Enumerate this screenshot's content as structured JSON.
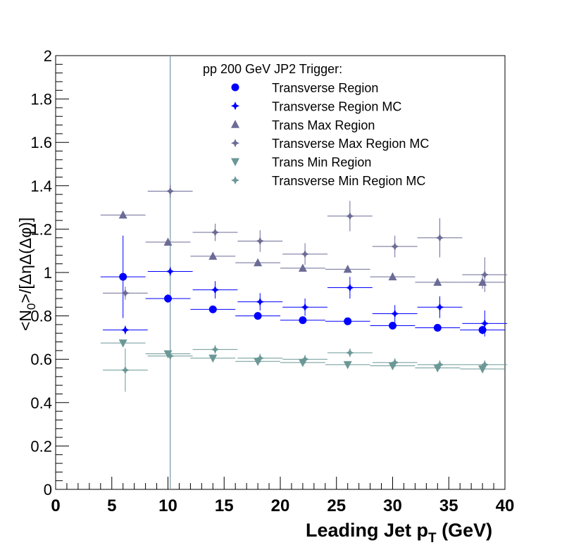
{
  "colors": {
    "blue": "#0000ff",
    "slate": "#6b6b96",
    "teal": "#6b9896",
    "vline": "#7f9fae",
    "axis": "#000000"
  },
  "chart_data": {
    "type": "scatter",
    "xlabel_main": "Leading Jet p",
    "xlabel_sub": "T",
    "xlabel_unit": " (GeV)",
    "ylabel": "<N",
    "ylabel_sub": "0",
    "ylabel_rest": ">/[ΔηΔ(Δφ)]",
    "xlim": [
      0,
      40
    ],
    "ylim": [
      0,
      2
    ],
    "x_ticks": [
      0,
      5,
      10,
      15,
      20,
      25,
      30,
      35,
      40
    ],
    "y_ticks": [
      0,
      0.2,
      0.4,
      0.6,
      0.8,
      1,
      1.2,
      1.4,
      1.6,
      1.8,
      2
    ],
    "x_tick_labels": [
      "0",
      "5",
      "10",
      "15",
      "20",
      "25",
      "30",
      "35",
      "40"
    ],
    "y_tick_labels": [
      "0",
      "0.2",
      "0.4",
      "0.6",
      "0.8",
      "1",
      "1.2",
      "1.4",
      "1.6",
      "1.8",
      "2"
    ],
    "grid": false,
    "vertical_line_x": 10.2,
    "legend_header": "pp 200 GeV JP2 Trigger:",
    "legend_position": "top-center",
    "series": [
      {
        "name": "Transverse Region",
        "marker": "circle",
        "color": "#0000ff",
        "x": [
          6,
          10,
          14,
          18,
          22,
          26,
          30,
          34,
          38
        ],
        "xerr": [
          2,
          2,
          2,
          2,
          2,
          2,
          2,
          2,
          2
        ],
        "y": [
          0.98,
          0.88,
          0.83,
          0.8,
          0.78,
          0.775,
          0.755,
          0.745,
          0.735
        ],
        "yerr": [
          0.19,
          0.02,
          0.01,
          0.01,
          0.01,
          0.01,
          0.01,
          0.01,
          0.02
        ]
      },
      {
        "name": "Transverse Region MC",
        "marker": "star",
        "color": "#0000ff",
        "x": [
          6.2,
          10.2,
          14.2,
          18.2,
          22.2,
          26.2,
          30.2,
          34.2,
          38.2
        ],
        "xerr": [
          2,
          2,
          2,
          2,
          2,
          2,
          2,
          2,
          2
        ],
        "y": [
          0.735,
          1.005,
          0.92,
          0.865,
          0.84,
          0.93,
          0.81,
          0.84,
          0.765
        ],
        "yerr": [
          0.02,
          0.02,
          0.04,
          0.04,
          0.04,
          0.05,
          0.04,
          0.05,
          0.06
        ]
      },
      {
        "name": "Trans Max Region",
        "marker": "triangle-up",
        "color": "#6b6b96",
        "x": [
          6,
          10,
          14,
          18,
          22,
          26,
          30,
          34,
          38
        ],
        "xerr": [
          2,
          2,
          2,
          2,
          2,
          2,
          2,
          2,
          2
        ],
        "y": [
          1.265,
          1.14,
          1.075,
          1.045,
          1.02,
          1.015,
          0.98,
          0.955,
          0.955
        ],
        "yerr": [
          0.01,
          0.01,
          0.01,
          0.01,
          0.01,
          0.01,
          0.01,
          0.01,
          0.03
        ]
      },
      {
        "name": "Transverse Max Region MC",
        "marker": "star",
        "color": "#6b6b96",
        "x": [
          6.2,
          10.2,
          14.2,
          18.2,
          22.2,
          26.2,
          30.2,
          34.2,
          38.2
        ],
        "xerr": [
          2,
          2,
          2,
          2,
          2,
          2,
          2,
          2,
          2
        ],
        "y": [
          0.905,
          1.375,
          1.185,
          1.145,
          1.085,
          1.26,
          1.12,
          1.16,
          0.99
        ],
        "yerr": [
          0.03,
          0.03,
          0.04,
          0.05,
          0.05,
          0.07,
          0.05,
          0.09,
          0.08
        ]
      },
      {
        "name": "Trans Min Region",
        "marker": "triangle-down",
        "color": "#6b9896",
        "x": [
          6,
          10,
          14,
          18,
          22,
          26,
          30,
          34,
          38
        ],
        "xerr": [
          2,
          2,
          2,
          2,
          2,
          2,
          2,
          2,
          2
        ],
        "y": [
          0.675,
          0.625,
          0.605,
          0.59,
          0.585,
          0.575,
          0.57,
          0.56,
          0.555
        ],
        "yerr": [
          0.01,
          0.01,
          0.01,
          0.01,
          0.01,
          0.01,
          0.01,
          0.01,
          0.01
        ]
      },
      {
        "name": "Transverse Min Region MC",
        "marker": "star",
        "color": "#6b9896",
        "x": [
          6.2,
          10.2,
          14.2,
          18.2,
          22.2,
          26.2,
          30.2,
          34.2,
          38.2
        ],
        "xerr": [
          2,
          2,
          2,
          2,
          2,
          2,
          2,
          2,
          2
        ],
        "y": [
          0.55,
          0.615,
          0.645,
          0.605,
          0.6,
          0.63,
          0.585,
          0.575,
          0.575
        ],
        "yerr": [
          0.1,
          0.02,
          0.02,
          0.02,
          0.02,
          0.02,
          0.02,
          0.02,
          0.02
        ]
      }
    ]
  }
}
